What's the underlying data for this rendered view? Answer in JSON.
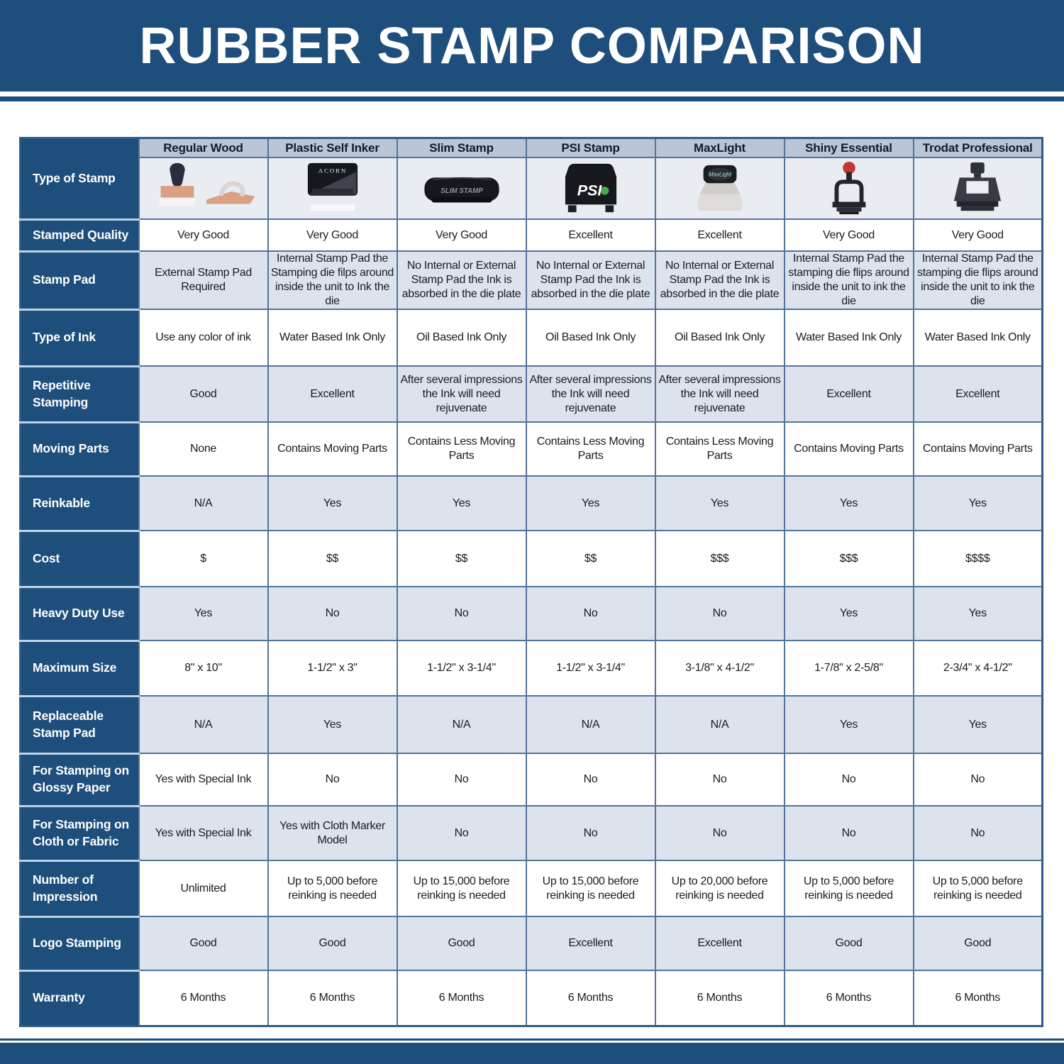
{
  "title": "RUBBER STAMP COMPARISON",
  "colors": {
    "navy_band": "#1E4E7B",
    "header_strip": "#BAC6D6",
    "row_light": "#DCE3ED",
    "row_white": "#FFFFFF",
    "icon_row_bg": "#E9EDF2",
    "grid_line": "#53749B",
    "label_separator": "#BCD3E8"
  },
  "chart_data": {
    "type": "table",
    "title": "RUBBER STAMP COMPARISON",
    "corner_row_label": "Type of Stamp",
    "columns": [
      "Regular Wood",
      "Plastic Self Inker",
      "Slim Stamp",
      "PSI Stamp",
      "MaxLight",
      "Shiny Essential",
      "Trodat Professional"
    ],
    "stamps": [
      {
        "icon": "regular-wood-stamp-icon",
        "brand": ""
      },
      {
        "icon": "plastic-self-inker-icon",
        "brand": "ACORN"
      },
      {
        "icon": "slim-stamp-icon",
        "brand": "SLIM STAMP"
      },
      {
        "icon": "psi-stamp-icon",
        "brand": "PSI"
      },
      {
        "icon": "maxlight-icon",
        "brand": "MaxLight"
      },
      {
        "icon": "shiny-essential-icon",
        "brand": ""
      },
      {
        "icon": "trodat-professional-icon",
        "brand": ""
      }
    ],
    "rows": [
      {
        "label": "Stamped Quality",
        "values": [
          "Very Good",
          "Very Good",
          "Very Good",
          "Excellent",
          "Excellent",
          "Very Good",
          "Very Good"
        ]
      },
      {
        "label": "Stamp Pad",
        "values": [
          "External Stamp Pad Required",
          "Internal Stamp Pad the Stamping die filps around inside the unit to Ink the die",
          "No Internal or External Stamp Pad the Ink is absorbed in the die plate",
          "No Internal or External Stamp Pad the Ink is absorbed in the die plate",
          "No Internal or External Stamp Pad the Ink is absorbed in the die plate",
          "Internal Stamp Pad the stamping die flips around inside the unit to ink the die",
          "Internal Stamp Pad the stamping die flips around inside the unit to ink the die"
        ]
      },
      {
        "label": "Type of Ink",
        "values": [
          "Use any color of ink",
          "Water Based Ink Only",
          "Oil Based Ink Only",
          "Oil Based Ink Only",
          "Oil Based Ink Only",
          "Water Based Ink Only",
          "Water Based Ink Only"
        ]
      },
      {
        "label": "Repetitive Stamping",
        "values": [
          "Good",
          "Excellent",
          "After several impressions the Ink will need rejuvenate",
          "After several impressions the Ink will need rejuvenate",
          "After several impressions the Ink will need rejuvenate",
          "Excellent",
          "Excellent"
        ]
      },
      {
        "label": "Moving Parts",
        "values": [
          "None",
          "Contains Moving Parts",
          "Contains Less Moving Parts",
          "Contains Less Moving Parts",
          "Contains Less Moving Parts",
          "Contains Moving Parts",
          "Contains Moving Parts"
        ]
      },
      {
        "label": "Reinkable",
        "values": [
          "N/A",
          "Yes",
          "Yes",
          "Yes",
          "Yes",
          "Yes",
          "Yes"
        ]
      },
      {
        "label": "Cost",
        "values": [
          "$",
          "$$",
          "$$",
          "$$",
          "$$$",
          "$$$",
          "$$$$"
        ]
      },
      {
        "label": "Heavy Duty Use",
        "values": [
          "Yes",
          "No",
          "No",
          "No",
          "No",
          "Yes",
          "Yes"
        ]
      },
      {
        "label": "Maximum Size",
        "values": [
          "8\" x 10\"",
          "1-1/2\" x 3\"",
          "1-1/2\" x 3-1/4\"",
          "1-1/2\" x 3-1/4\"",
          "3-1/8\" x 4-1/2\"",
          "1-7/8\" x 2-5/8\"",
          "2-3/4\" x 4-1/2\""
        ]
      },
      {
        "label": "Replaceable Stamp Pad",
        "values": [
          "N/A",
          "Yes",
          "N/A",
          "N/A",
          "N/A",
          "Yes",
          "Yes"
        ]
      },
      {
        "label": "For Stamping on Glossy Paper",
        "values": [
          "Yes with Special Ink",
          "No",
          "No",
          "No",
          "No",
          "No",
          "No"
        ]
      },
      {
        "label": "For Stamping on Cloth or Fabric",
        "values": [
          "Yes with Special Ink",
          "Yes with Cloth Marker Model",
          "No",
          "No",
          "No",
          "No",
          "No"
        ]
      },
      {
        "label": "Number of Impression",
        "values": [
          "Unlimited",
          "Up to 5,000 before reinking is needed",
          "Up to 15,000 before reinking is needed",
          "Up to 15,000 before reinking is needed",
          "Up to 20,000 before reinking is needed",
          "Up to 5,000 before reinking is needed",
          "Up to 5,000 before reinking is needed"
        ]
      },
      {
        "label": "Logo Stamping",
        "values": [
          "Good",
          "Good",
          "Good",
          "Excellent",
          "Excellent",
          "Good",
          "Good"
        ]
      },
      {
        "label": "Warranty",
        "values": [
          "6 Months",
          "6 Months",
          "6 Months",
          "6 Months",
          "6 Months",
          "6 Months",
          "6 Months"
        ]
      }
    ]
  }
}
